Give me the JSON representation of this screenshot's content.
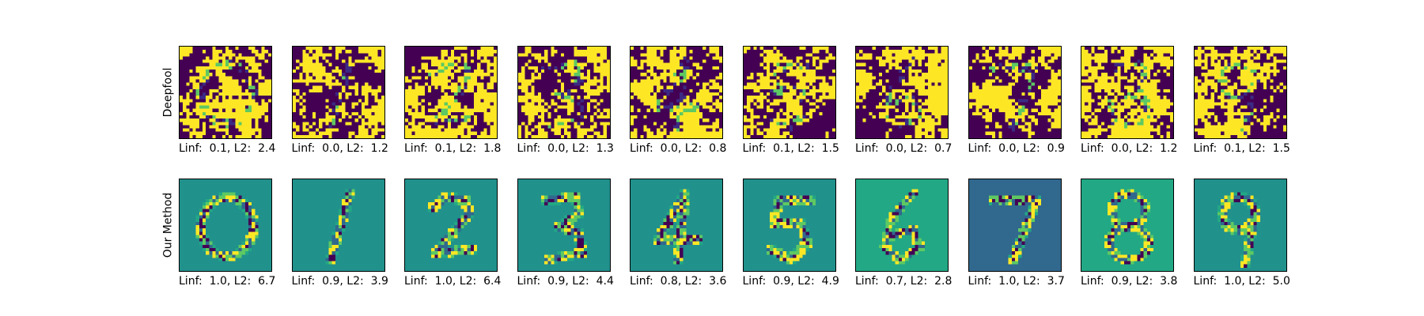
{
  "figure": {
    "rows": [
      {
        "label": "Deepfool",
        "style": "binary",
        "panels": [
          {
            "digit": "0",
            "caption": "Linf:  0.1, L2:  2.4"
          },
          {
            "digit": "1",
            "caption": "Linf:  0.0, L2:  1.2"
          },
          {
            "digit": "2",
            "caption": "Linf:  0.1, L2:  1.8"
          },
          {
            "digit": "3",
            "caption": "Linf:  0.0, L2:  1.3"
          },
          {
            "digit": "4",
            "caption": "Linf:  0.0, L2:  0.8"
          },
          {
            "digit": "5",
            "caption": "Linf:  0.1, L2:  1.5"
          },
          {
            "digit": "6",
            "caption": "Linf:  0.0, L2:  0.7"
          },
          {
            "digit": "7",
            "caption": "Linf:  0.0, L2:  0.9"
          },
          {
            "digit": "8",
            "caption": "Linf:  0.0, L2:  1.2"
          },
          {
            "digit": "9",
            "caption": "Linf:  0.1, L2:  1.5"
          }
        ]
      },
      {
        "label": "Our Method",
        "style": "sparse",
        "panels": [
          {
            "digit": "0",
            "caption": "Linf:  1.0, L2:  6.7"
          },
          {
            "digit": "1",
            "caption": "Linf:  0.9, L2:  3.9"
          },
          {
            "digit": "2",
            "caption": "Linf:  1.0, L2:  6.4"
          },
          {
            "digit": "3",
            "caption": "Linf:  0.9, L2:  4.4"
          },
          {
            "digit": "4",
            "caption": "Linf:  0.8, L2:  3.6"
          },
          {
            "digit": "5",
            "caption": "Linf:  0.9, L2:  4.9"
          },
          {
            "digit": "6",
            "caption": "Linf:  0.7, L2:  2.8"
          },
          {
            "digit": "7",
            "caption": "Linf:  1.0, L2:  3.7"
          },
          {
            "digit": "8",
            "caption": "Linf:  0.9, L2:  3.8"
          },
          {
            "digit": "9",
            "caption": "Linf:  1.0, L2:  5.0"
          }
        ]
      }
    ],
    "colors": {
      "dark": "#440154",
      "purple": "#3b2a84",
      "blue": "#31688e",
      "teal": "#21918c",
      "teal_light": "#22a884",
      "green": "#5ec962",
      "yellow": "#fde725"
    }
  }
}
